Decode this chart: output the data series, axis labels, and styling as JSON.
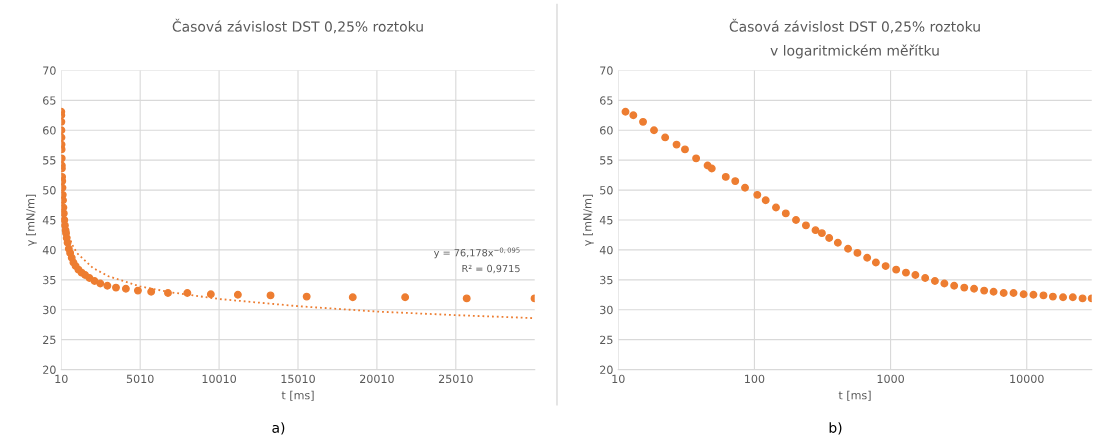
{
  "chart_data": [
    {
      "type": "scatter",
      "title": "Časová závislost DST 0,25% roztoku",
      "xlabel": "t [ms]",
      "ylabel": "γ [mN/m]",
      "xlim": [
        10,
        30010
      ],
      "xticks": [
        10,
        5010,
        10010,
        15010,
        20010,
        25010
      ],
      "ylim": [
        20,
        70
      ],
      "yticks": [
        20,
        25,
        30,
        35,
        40,
        45,
        50,
        55,
        60,
        65,
        70
      ],
      "grid": true,
      "legend": false,
      "x": [
        11.3,
        12.9,
        15.2,
        18.3,
        22.1,
        26.8,
        30.9,
        37.3,
        45.3,
        48.6,
        61.6,
        72.3,
        85.3,
        105,
        121,
        144,
        170,
        202,
        239,
        281,
        313,
        354,
        410,
        487,
        571,
        673,
        780,
        920,
        1099,
        1297,
        1521,
        1795,
        2117,
        2484,
        2931,
        3477,
        4104,
        4867,
        5707,
        6771,
        7998,
        9487,
        11200,
        13270,
        15560,
        18480,
        21800,
        25700,
        30000
      ],
      "series": [
        {
          "marker": "circle",
          "color": "#ed7d31",
          "values": [
            63.1,
            62.5,
            61.4,
            60.0,
            58.8,
            57.6,
            56.8,
            55.3,
            54.1,
            53.6,
            52.2,
            51.5,
            50.4,
            49.2,
            48.3,
            47.1,
            46.1,
            45.0,
            44.1,
            43.3,
            42.8,
            42.0,
            41.2,
            40.2,
            39.5,
            38.7,
            37.9,
            37.3,
            36.7,
            36.2,
            35.8,
            35.3,
            34.8,
            34.4,
            34.0,
            33.7,
            33.5,
            33.2,
            33.0,
            32.8,
            32.8,
            32.6,
            32.5,
            32.4,
            32.2,
            32.1,
            32.1,
            31.9,
            31.9
          ]
        },
        {
          "type": "line",
          "marker": "none",
          "color": "#ed7d31",
          "line_style": "dotted",
          "x": [
            500,
            700,
            1000,
            2000,
            3000,
            5000,
            7000,
            10000,
            15000,
            20000,
            25000,
            30000
          ],
          "values": [
            42.3,
            40.9,
            39.5,
            37.0,
            35.6,
            33.9,
            32.9,
            31.8,
            30.6,
            29.7,
            29.1,
            28.6
          ]
        }
      ],
      "annotations": [
        "y = 76,178x$^{−0,095}$",
        "R² = 0,9715",
        "a)"
      ]
    },
    {
      "type": "scatter",
      "title": "Časová závislost DST 0,25% roztoku",
      "subtitle": "v logaritmickém měřítku",
      "xlabel": "t [ms]",
      "ylabel": "γ [mN/m]",
      "log": "x",
      "xlim": [
        10,
        30010
      ],
      "xticks": [
        10,
        100,
        1000,
        10000
      ],
      "ylim": [
        20,
        70
      ],
      "yticks": [
        20,
        25,
        30,
        35,
        40,
        45,
        50,
        55,
        60,
        65,
        70
      ],
      "grid": true,
      "legend": false,
      "marker": "circle",
      "x": [
        11.3,
        12.9,
        15.2,
        18.3,
        22.1,
        26.8,
        30.9,
        37.3,
        45.3,
        48.6,
        61.6,
        72.3,
        85.3,
        105,
        121,
        144,
        170,
        202,
        239,
        281,
        313,
        354,
        410,
        487,
        571,
        673,
        780,
        920,
        1099,
        1297,
        1521,
        1795,
        2117,
        2484,
        2931,
        3477,
        4104,
        4867,
        5707,
        6771,
        7998,
        9487,
        11200,
        13270,
        15560,
        18480,
        21800,
        25700,
        30000
      ],
      "series": [
        {
          "color": "#ed7d31",
          "values": [
            63.1,
            62.5,
            61.4,
            60.0,
            58.8,
            57.6,
            56.8,
            55.3,
            54.1,
            53.6,
            52.2,
            51.5,
            50.4,
            49.2,
            48.3,
            47.1,
            46.1,
            45.0,
            44.1,
            43.3,
            42.8,
            42.0,
            41.2,
            40.2,
            39.5,
            38.7,
            37.9,
            37.3,
            36.7,
            36.2,
            35.8,
            35.3,
            34.8,
            34.4,
            34.0,
            33.7,
            33.5,
            33.2,
            33.0,
            32.8,
            32.8,
            32.6,
            32.5,
            32.4,
            32.2,
            32.1,
            32.1,
            31.9,
            31.9
          ]
        }
      ],
      "annotations": [
        "b)"
      ]
    }
  ]
}
